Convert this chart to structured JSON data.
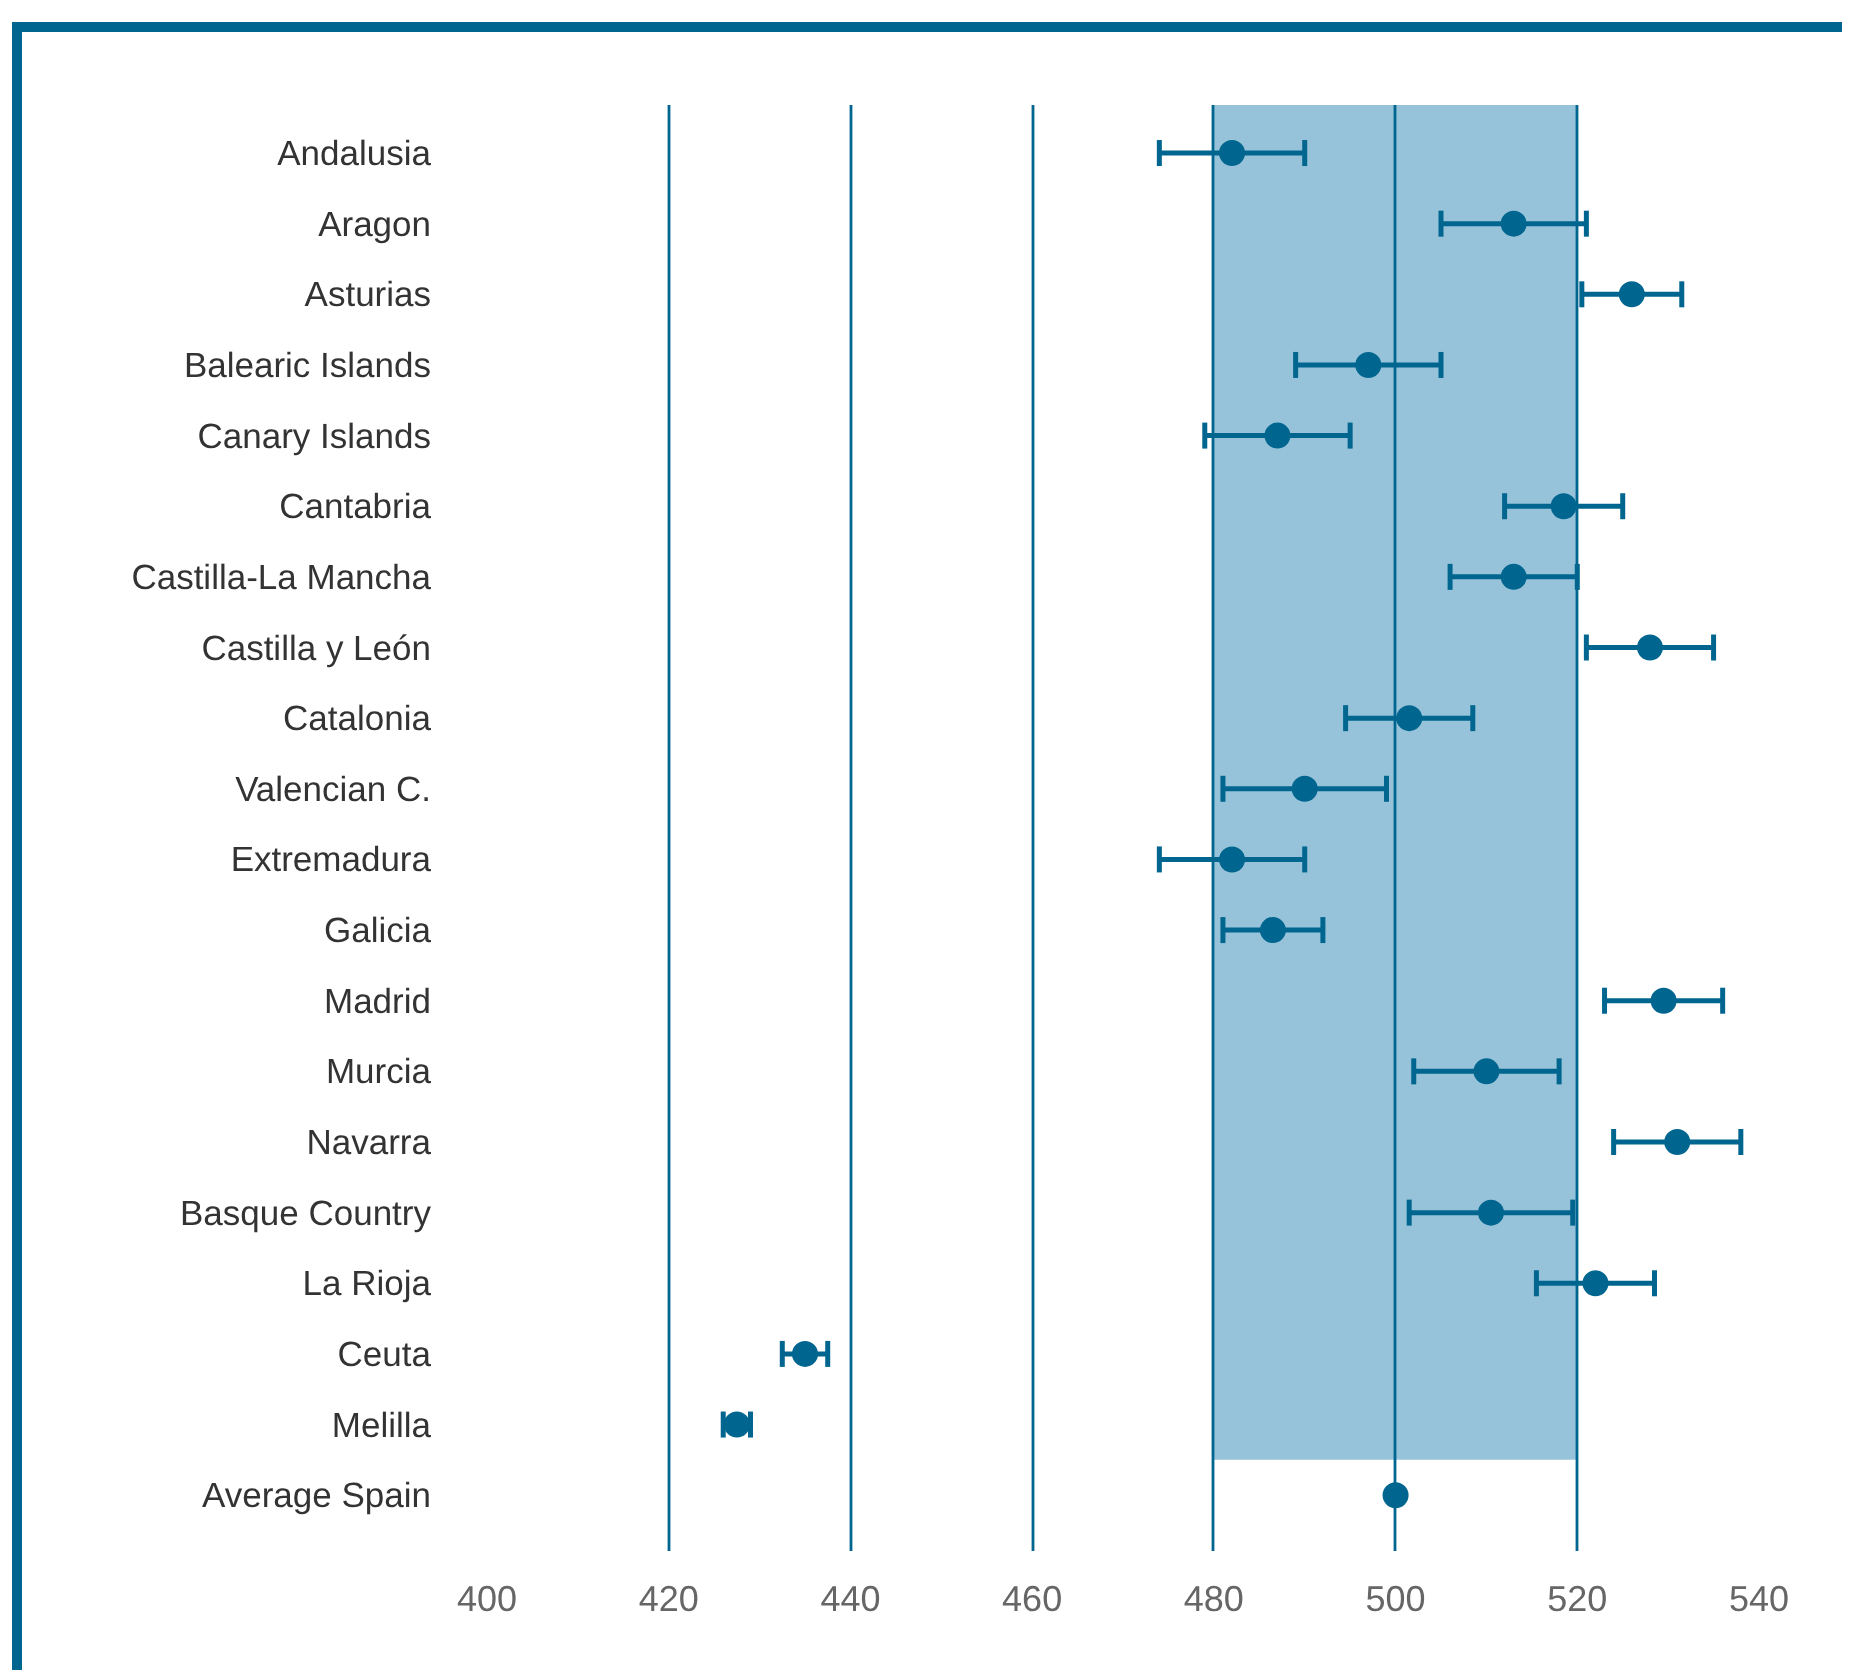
{
  "chart_data": {
    "type": "scatter",
    "orientation": "horizontal",
    "categories": [
      "Andalusia",
      "Aragon",
      "Asturias",
      "Balearic Islands",
      "Canary Islands",
      "Cantabria",
      "Castilla-La Mancha",
      "Castilla y León",
      "Catalonia",
      "Valencian C.",
      "Extremadura",
      "Galicia",
      "Madrid",
      "Murcia",
      "Navarra",
      "Basque Country",
      "La Rioja",
      "Ceuta",
      "Melilla",
      "Average Spain"
    ],
    "series": [
      {
        "color": "#00668f",
        "values": [
          482,
          513,
          526,
          497,
          487,
          518.5,
          513,
          528,
          501.5,
          490,
          482,
          486.5,
          529.5,
          510,
          531,
          510.5,
          522,
          435,
          427.5,
          500
        ],
        "errors": [
          8,
          8,
          5.5,
          8,
          8,
          6.5,
          7,
          7,
          7,
          9,
          8,
          5.5,
          6.5,
          8,
          7,
          9,
          6.5,
          2.5,
          1.5,
          null
        ]
      }
    ],
    "xlim": [
      400,
      540
    ],
    "xticks": [
      400,
      420,
      440,
      460,
      480,
      500,
      520,
      540
    ],
    "grid": "x",
    "marker": "circle",
    "bands": [
      {
        "axis": "x",
        "from": 480,
        "to": 520,
        "color": "#96c3da"
      }
    ]
  }
}
